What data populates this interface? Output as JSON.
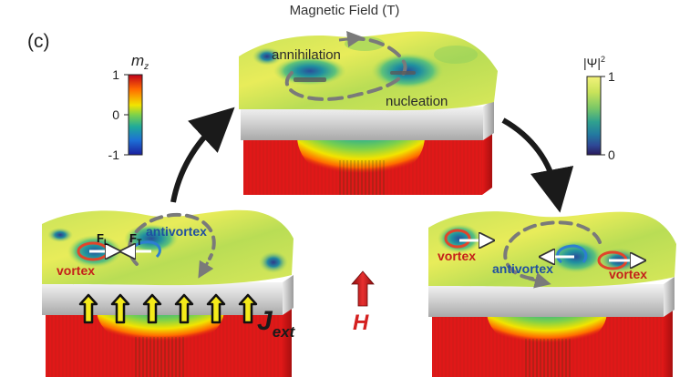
{
  "panel_label": "(c)",
  "title": "Magnetic Field (T)",
  "colorbar_left": {
    "symbol": "m",
    "subscript": "z",
    "ticks": [
      "1",
      "0",
      "-1"
    ],
    "colors": [
      "#c0001a",
      "#ff6a00",
      "#f2e400",
      "#7ed14a",
      "#1faa9a",
      "#1d6fd6",
      "#1a1f9e"
    ]
  },
  "colorbar_right": {
    "symbol": "|Ψ|",
    "superscript": "2",
    "ticks": [
      "1",
      "0"
    ],
    "colors": [
      "#f3f27a",
      "#c9e35a",
      "#7cc866",
      "#2fa08f",
      "#237aa0",
      "#2e4896",
      "#2a1a5c"
    ]
  },
  "top_panel": {
    "labels": [
      "annihilation",
      "nucleation"
    ]
  },
  "left_panel": {
    "force_left": "F",
    "force_left_sub": "L",
    "force_right": "F",
    "force_right_sub": "T",
    "antivortex": "antivortex",
    "vortex": "vortex",
    "current_symbol": "J",
    "current_sub": "ext"
  },
  "right_panel": {
    "vortex_left": "vortex",
    "antivortex": "antivortex",
    "vortex_right": "vortex"
  },
  "field_symbol": "H",
  "colors": {
    "arrow_black": "#1a1a1a",
    "field_red": "#d42020",
    "current_yellow": "#f5ea1a",
    "vortex_ring": "#e0452b",
    "antivortex_ring": "#2d7fd0"
  }
}
